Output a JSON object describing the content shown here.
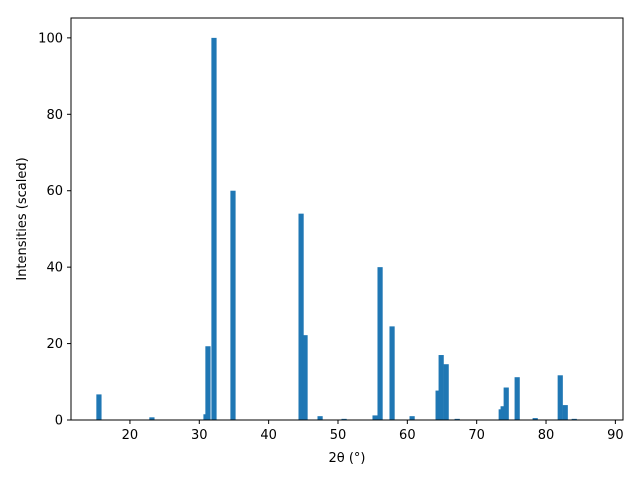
{
  "chart_data": {
    "type": "bar",
    "xlabel": "2θ (°)",
    "ylabel": "Intensities (scaled)",
    "x": [
      15.53,
      23.17,
      30.97,
      31.25,
      32.12,
      34.86,
      44.68,
      45.25,
      47.42,
      50.88,
      55.35,
      56.07,
      57.8,
      60.69,
      64.44,
      64.88,
      65.6,
      67.19,
      73.54,
      73.82,
      74.26,
      75.84,
      78.44,
      82.05,
      82.77,
      84.07
    ],
    "values": [
      6.7,
      0.7,
      1.5,
      19.3,
      100,
      60,
      54,
      22.2,
      1,
      0.3,
      1.2,
      40,
      24.5,
      1,
      7.7,
      17,
      14.6,
      0.3,
      2.8,
      3.6,
      8.5,
      11.2,
      0.5,
      11.7,
      3.9,
      0.3
    ],
    "color": "#1f77b4",
    "xlim": [
      11.5,
      91.1
    ],
    "xticks": [
      20,
      30,
      40,
      50,
      60,
      70,
      80,
      90
    ],
    "ylim": [
      0,
      105.2
    ],
    "yticks": [
      0,
      20,
      40,
      60,
      80,
      100
    ],
    "grid": false
  }
}
